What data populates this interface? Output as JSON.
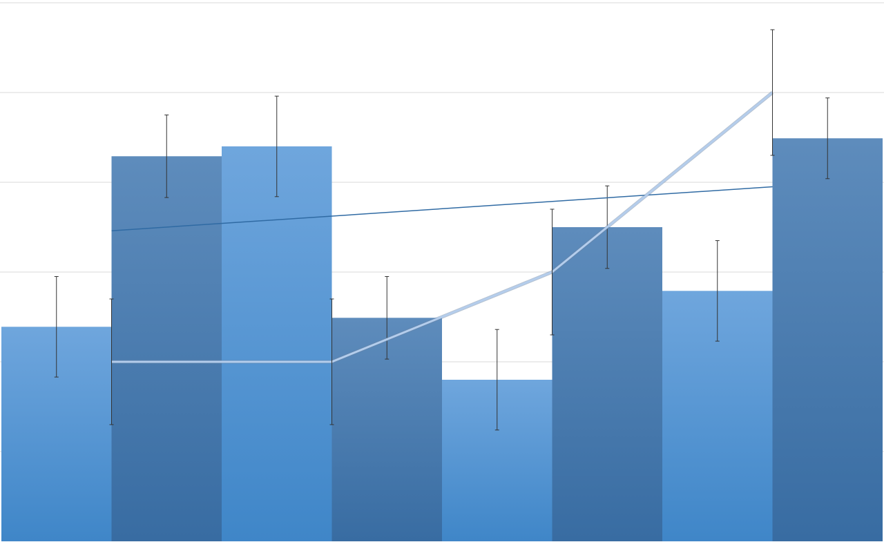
{
  "chart_data": {
    "type": "bar",
    "title": "",
    "xlabel": "",
    "ylabel": "",
    "ylim": [
      0,
      6
    ],
    "grid": true,
    "legend": "none",
    "bar_series": {
      "x": [
        1,
        2,
        3,
        4,
        5,
        6,
        7,
        8
      ],
      "values": [
        2.39,
        4.29,
        4.4,
        2.49,
        1.8,
        3.5,
        2.79,
        4.49
      ],
      "errors": [
        0.56,
        0.46,
        0.56,
        0.46,
        0.56,
        0.46,
        0.56,
        0.45
      ],
      "colors_light": [
        "#6fa6dd",
        "#3f86c8"
      ],
      "colors_dark": [
        "#5e8cbc",
        "#386ca2"
      ]
    },
    "line_series": {
      "type": "line",
      "x": [
        1.5,
        3.5,
        5.5,
        7.5
      ],
      "values": [
        2,
        2,
        3,
        5
      ],
      "errors": [
        0.7,
        0.7,
        0.7,
        0.7
      ],
      "color": "#b4cdec"
    },
    "trendline": {
      "type": "line",
      "x": [
        1.5,
        7.5
      ],
      "values": [
        3.46,
        3.95
      ],
      "color": "#2f6aa3"
    }
  }
}
